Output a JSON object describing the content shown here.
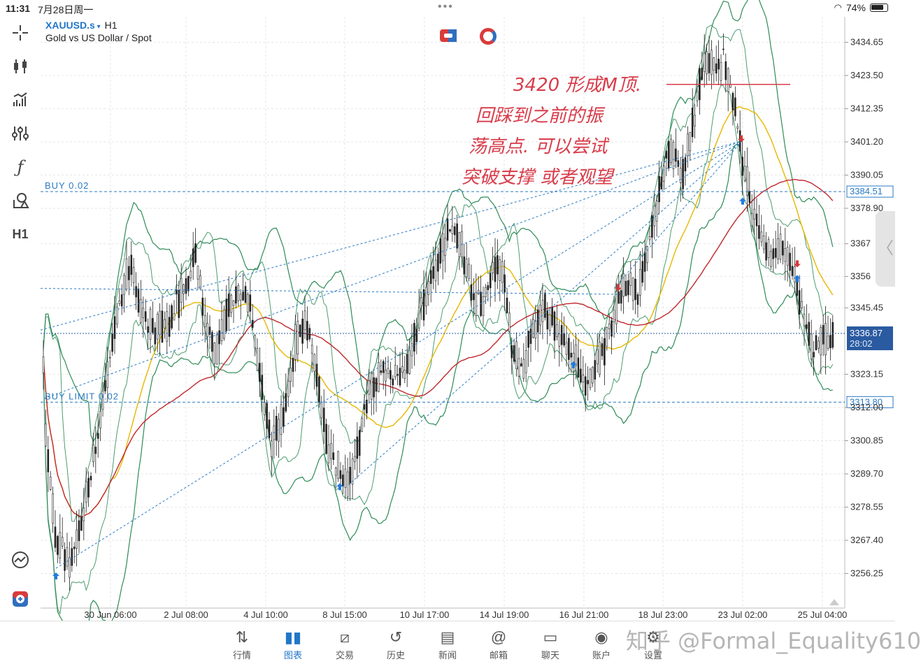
{
  "status": {
    "time": "11:31",
    "date": "7月28日周一",
    "battery": "74%"
  },
  "chart": {
    "symbol": "XAUUSD.s",
    "timeframe": "H1",
    "description": "Gold vs US Dollar / Spot",
    "toolbar": {
      "timeframe_label": "H1"
    },
    "price_labels": [
      "3434.65",
      "3423.50",
      "3412.35",
      "3401.20",
      "3390.05",
      "3378.90",
      "3367",
      "3356",
      "3345.45",
      "3323.15",
      "3312.00",
      "3300.85",
      "3289.70",
      "3278.55",
      "3267.40",
      "3256.25"
    ],
    "time_labels": [
      "30 Jun 06:00",
      "2 Jul 08:00",
      "4 Jul 10:00",
      "8 Jul 15:00",
      "10 Jul 17:00",
      "14 Jul 19:00",
      "16 Jul 21:00",
      "18 Jul 23:00",
      "23 Jul 02:00",
      "25 Jul 04:00"
    ],
    "current_price": "3336.87",
    "countdown": "28:02",
    "buy_price": "3384.51",
    "buy_limit_price": "3313.80",
    "buy_label": "BUY 0.02",
    "buy_limit_label": "BUY LIMIT 0.02",
    "annotation": {
      "line1": "3420 形成M顶.",
      "line2": "回踩到之前的振",
      "line3": "荡高点. 可以尝试",
      "line4": "突破支撑 或者观望"
    },
    "colors": {
      "bb": "#2e8b57",
      "ma_fast": "#e6b800",
      "ma_slow": "#c0282c",
      "dotted": "#2a7ac4",
      "annotation": "#d83c4a"
    }
  },
  "nav": {
    "items": [
      {
        "label": "行情",
        "icon": "quotes-icon"
      },
      {
        "label": "图表",
        "icon": "chart-icon"
      },
      {
        "label": "交易",
        "icon": "trade-icon"
      },
      {
        "label": "历史",
        "icon": "history-icon"
      },
      {
        "label": "新闻",
        "icon": "news-icon"
      },
      {
        "label": "邮箱",
        "icon": "mail-icon"
      },
      {
        "label": "聊天",
        "icon": "chat-icon"
      },
      {
        "label": "账户",
        "icon": "account-icon"
      },
      {
        "label": "设置",
        "icon": "settings-icon"
      }
    ]
  },
  "watermark": "知乎 @Formal_Equality610"
}
